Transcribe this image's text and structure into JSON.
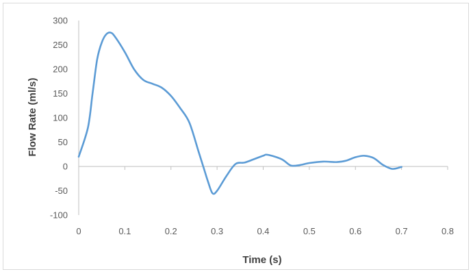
{
  "chart_data": {
    "type": "line",
    "title": "",
    "xlabel": "Time (s)",
    "ylabel": "Flow Rate (ml/s)",
    "xlim": [
      0,
      0.8
    ],
    "ylim": [
      -100,
      300
    ],
    "x_ticks": [
      0,
      0.1,
      0.2,
      0.3,
      0.4,
      0.5,
      0.6,
      0.7,
      0.8
    ],
    "x_tick_labels": [
      "0",
      "0.1",
      "0.2",
      "0.3",
      "0.4",
      "0.5",
      "0.6",
      "0.7",
      "0.8"
    ],
    "y_ticks": [
      -100,
      -50,
      0,
      50,
      100,
      150,
      200,
      250,
      300
    ],
    "y_tick_labels": [
      "-100",
      "-50",
      "0",
      "50",
      "100",
      "150",
      "200",
      "250",
      "300"
    ],
    "grid": false,
    "legend": "none",
    "line_color": "#5b9bd5",
    "axis_color": "#bfbfbf",
    "series": [
      {
        "x": [
          0,
          0.02,
          0.03,
          0.04,
          0.05,
          0.06,
          0.07,
          0.08,
          0.1,
          0.12,
          0.14,
          0.16,
          0.18,
          0.2,
          0.22,
          0.24,
          0.26,
          0.27,
          0.28,
          0.29,
          0.3,
          0.32,
          0.34,
          0.36,
          0.38,
          0.4,
          0.41,
          0.44,
          0.46,
          0.48,
          0.5,
          0.53,
          0.56,
          0.58,
          0.6,
          0.62,
          0.64,
          0.66,
          0.68,
          0.7
        ],
        "values": [
          20,
          80,
          150,
          220,
          255,
          272,
          275,
          265,
          235,
          200,
          178,
          170,
          162,
          145,
          120,
          90,
          30,
          0,
          -30,
          -55,
          -50,
          -20,
          5,
          8,
          15,
          22,
          24,
          15,
          2,
          3,
          7,
          10,
          9,
          12,
          19,
          22,
          17,
          3,
          -5,
          -1
        ]
      }
    ]
  }
}
